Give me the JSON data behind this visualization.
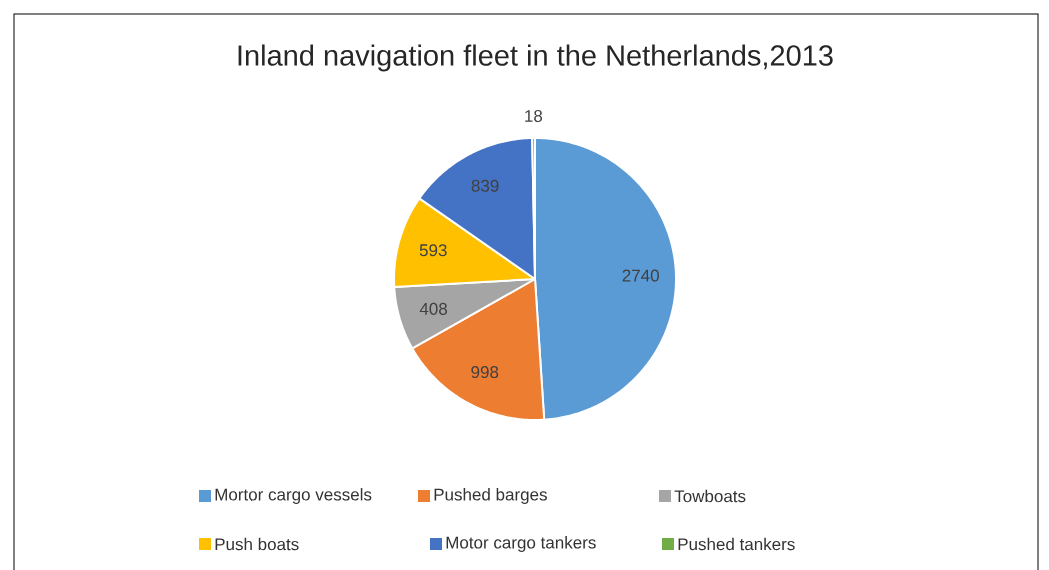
{
  "chart_data": {
    "type": "pie",
    "title": "Inland navigation fleet in the Netherlands,2013",
    "categories": [
      "Mortor cargo vessels",
      "Pushed barges",
      "Towboats",
      "Push boats",
      "Motor cargo tankers",
      "Pushed tankers"
    ],
    "values": [
      2740,
      998,
      408,
      593,
      839,
      18
    ],
    "colors": [
      "#5b9bd5",
      "#ed7d31",
      "#a5a5a5",
      "#ffc000",
      "#4472c4",
      "#70ad47"
    ],
    "data_labels": true,
    "legend": "bottom"
  }
}
